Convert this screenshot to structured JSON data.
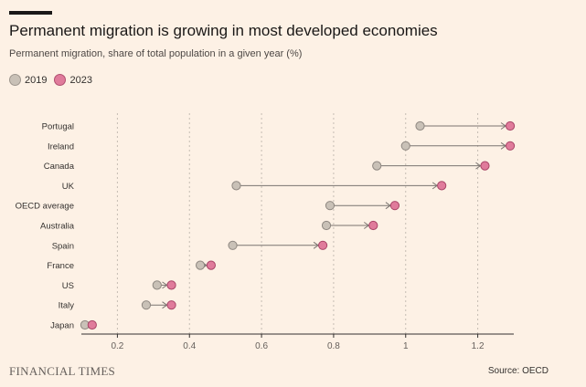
{
  "title": "Permanent migration is growing in most developed economies",
  "subtitle": "Permanent migration, share of total population in a given year (%)",
  "legend": [
    {
      "label": "2019",
      "color": "#c9c1b7"
    },
    {
      "label": "2023",
      "color": "#e07b9b"
    }
  ],
  "colors": {
    "background": "#fdf1e5",
    "dot_2019": "#c9c1b7",
    "dot_2023": "#e07b9b",
    "arrow": "#7a7470",
    "grid": "#c5bdb3"
  },
  "footer": {
    "brand": "FINANCIAL TIMES",
    "source": "Source: OECD"
  },
  "chart_data": {
    "type": "dot-arrow",
    "categories": [
      "Portugal",
      "Ireland",
      "Canada",
      "UK",
      "OECD average",
      "Australia",
      "Spain",
      "France",
      "US",
      "Italy",
      "Japan"
    ],
    "series": [
      {
        "name": "2019",
        "values": [
          1.04,
          1.0,
          0.92,
          0.53,
          0.79,
          0.78,
          0.52,
          0.43,
          0.31,
          0.28,
          0.11
        ]
      },
      {
        "name": "2023",
        "values": [
          1.29,
          1.29,
          1.22,
          1.1,
          0.97,
          0.91,
          0.77,
          0.46,
          0.35,
          0.35,
          0.13
        ]
      }
    ],
    "xlim": [
      0.1,
      1.3
    ],
    "xticks": [
      0.2,
      0.4,
      0.6,
      0.8,
      1,
      1.2
    ],
    "grid": true,
    "legend_position": "top-left"
  }
}
